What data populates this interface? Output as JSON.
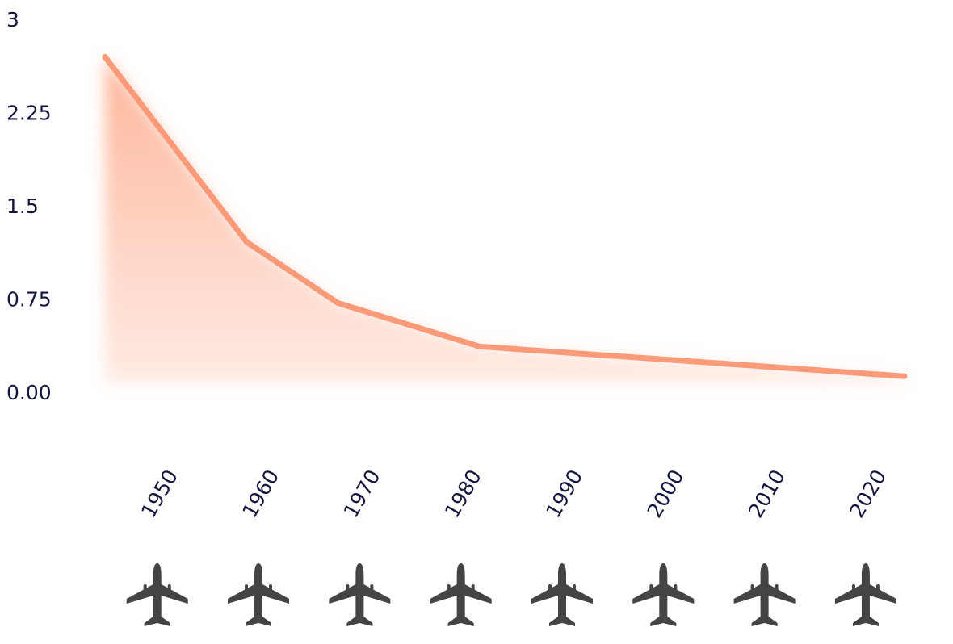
{
  "chart_data": {
    "type": "line",
    "x": [
      1943,
      1957,
      1966,
      1980,
      2022
    ],
    "values": [
      2.75,
      1.26,
      0.77,
      0.42,
      0.18
    ],
    "color": "#fb9a78",
    "xlim": [
      1943,
      2022
    ],
    "xticks": [
      1950,
      1960,
      1970,
      1980,
      1990,
      2000,
      2010,
      2020
    ],
    "ylim": [
      0,
      3
    ],
    "yticks": [
      {
        "value": 0,
        "label": "0.00"
      },
      0.75,
      1.5,
      2.25,
      3
    ],
    "grid": true
  }
}
